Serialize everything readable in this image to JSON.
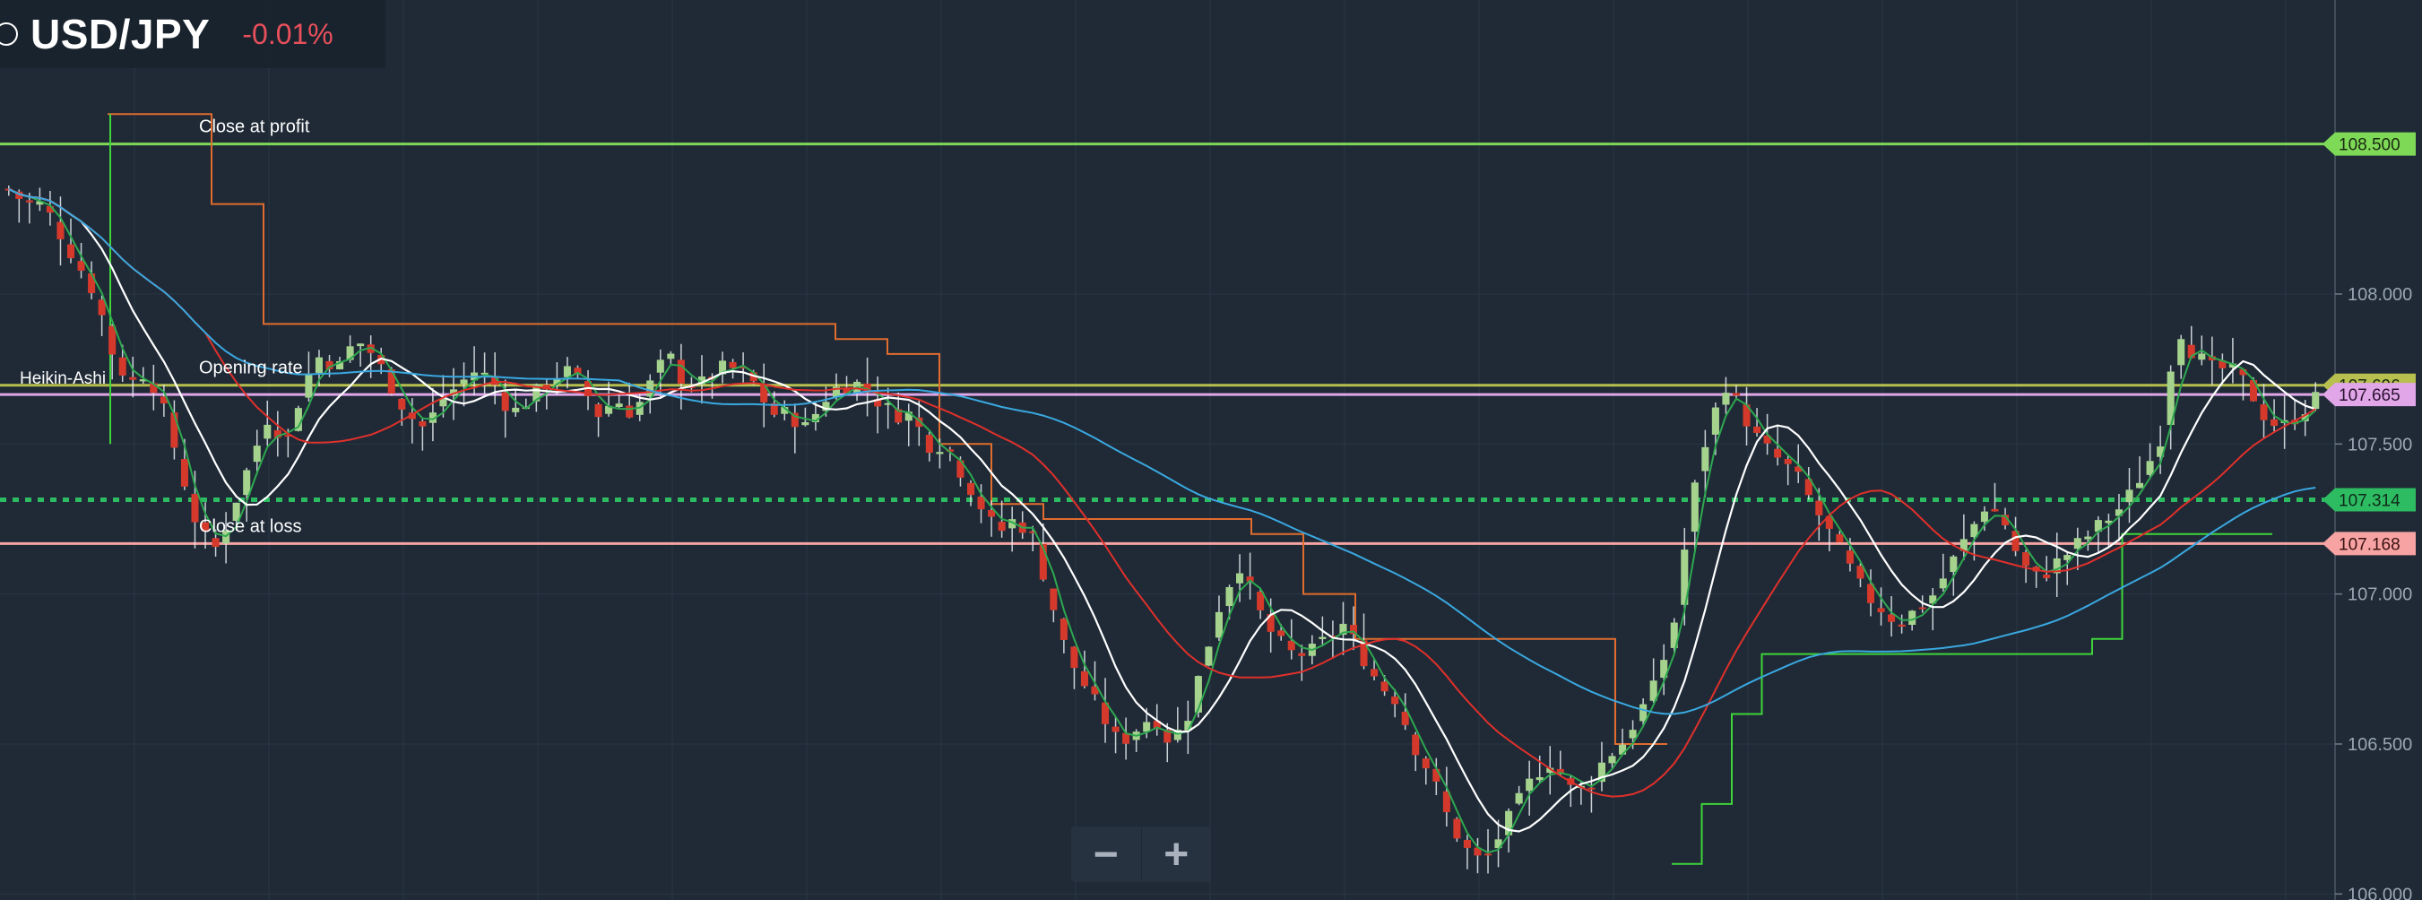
{
  "header": {
    "symbol": "USD/JPY",
    "change": "-0.01%",
    "icon": "circle-icon"
  },
  "zoom": {
    "minus_label": "−",
    "plus_label": "+"
  },
  "colors": {
    "background": "#1f2a36",
    "grid": "#2a3644",
    "candle_up": "#a5d38d",
    "candle_down": "#d4392b",
    "wick": "#e8edf2",
    "ma_fast": "#2ea84f",
    "ma_mid": "#ffffff",
    "ma_slow": "#e0302b",
    "ma_long": "#3aa8e0",
    "take_profit": "#7ed957",
    "stop_loss": "#f7a3a3",
    "opening_rate": "#b7c04f",
    "current_rate": "#e0a6e8",
    "dotted_level": "#2ebc62",
    "step_orange": "#e06c2e",
    "step_green": "#3fd43a"
  },
  "chart_data": {
    "type": "candlestick",
    "ylim": [
      105.98,
      108.98
    ],
    "y_ticks": [
      {
        "value": 108.0,
        "label": "108.000"
      },
      {
        "value": 107.5,
        "label": "107.500"
      },
      {
        "value": 107.0,
        "label": "107.000"
      },
      {
        "value": 106.5,
        "label": "106.500"
      },
      {
        "value": 106.0,
        "label": "106.000"
      }
    ],
    "legend_label": "Heikin-Ashi",
    "levels": [
      {
        "name": "close-at-profit",
        "value": 108.5,
        "label": "Close at profit",
        "tag": "108.500",
        "color": "#7ed957",
        "tag_text_color": "#1b2a12",
        "style": "solid"
      },
      {
        "name": "opening-rate",
        "value": 107.696,
        "label": "Opening rate",
        "tag": "107.696",
        "color": "#b7c04f",
        "tag_text_color": "#1b2a12",
        "style": "solid"
      },
      {
        "name": "current-rate",
        "value": 107.665,
        "label": "",
        "tag": "107.665",
        "color": "#e0a6e8",
        "tag_text_color": "#2a1230",
        "style": "solid"
      },
      {
        "name": "dotted-level",
        "value": 107.314,
        "label": "",
        "tag": "107.314",
        "color": "#2ebc62",
        "tag_text_color": "#0f2a1a",
        "style": "dotted"
      },
      {
        "name": "close-at-loss",
        "value": 107.168,
        "label": "Close at loss",
        "tag": "107.168",
        "color": "#f7a3a3",
        "tag_text_color": "#3a1212",
        "style": "solid"
      }
    ],
    "anchors": {
      "price": [
        108.35,
        108.3,
        108.3,
        108.2,
        108.1,
        108.0,
        107.8,
        107.7,
        107.75,
        107.6,
        107.4,
        107.2,
        107.15,
        107.3,
        107.45,
        107.6,
        107.5,
        107.7,
        107.8,
        107.75,
        107.85,
        107.8,
        107.7,
        107.6,
        107.55,
        107.65,
        107.7,
        107.75,
        107.7,
        107.6,
        107.65,
        107.7,
        107.75,
        107.7,
        107.6,
        107.65,
        107.6,
        107.7,
        107.8,
        107.7,
        107.7,
        107.75,
        107.75,
        107.7,
        107.6,
        107.6,
        107.55,
        107.65,
        107.7,
        107.7,
        107.65,
        107.6,
        107.6,
        107.5,
        107.5,
        107.4,
        107.3,
        107.2,
        107.25,
        107.2,
        107.0,
        106.8,
        106.7,
        106.6,
        106.5,
        106.55,
        106.6,
        106.5,
        106.6,
        106.8,
        107.0,
        107.1,
        106.95,
        106.85,
        106.8,
        106.8,
        106.85,
        106.9,
        106.8,
        106.7,
        106.65,
        106.5,
        106.4,
        106.25,
        106.15,
        106.1,
        106.2,
        106.3,
        106.4,
        106.45,
        106.35,
        106.35,
        106.45,
        106.5,
        106.6,
        106.7,
        106.9,
        107.3,
        107.55,
        107.7,
        107.6,
        107.5,
        107.45,
        107.4,
        107.3,
        107.2,
        107.1,
        107.0,
        106.95,
        106.9,
        106.95,
        107.0,
        107.1,
        107.2,
        107.3,
        107.25,
        107.1,
        107.05,
        107.1,
        107.15,
        107.2,
        107.25,
        107.3,
        107.4,
        107.5,
        107.9,
        107.8,
        107.75,
        107.75,
        107.7,
        107.6,
        107.55,
        107.6,
        107.65
      ]
    },
    "series": [
      {
        "name": "",
        "color": "#2ea84f",
        "period": 3
      },
      {
        "name": "",
        "color": "#ffffff",
        "period": 8
      },
      {
        "name": "",
        "color": "#e0302b",
        "period": 20
      },
      {
        "name": "",
        "color": "#3aa8e0",
        "period": 60
      }
    ],
    "step_lines": [
      {
        "name": "orange-step",
        "color": "#e06c2e",
        "values": [
          108.6,
          108.6,
          108.3,
          107.9,
          107.9,
          107.9,
          107.9,
          107.9,
          107.9,
          107.9,
          107.9,
          107.9,
          107.9,
          107.9,
          107.85,
          107.8,
          107.5,
          107.3,
          107.25,
          107.25,
          107.25,
          107.25,
          107.2,
          107.0,
          106.85,
          106.85,
          106.85,
          106.85,
          106.85,
          106.5
        ]
      },
      {
        "name": "green-step",
        "color": "#3fd43a",
        "values": [
          106.1,
          106.3,
          106.6,
          106.8,
          106.8,
          106.8,
          106.8,
          106.8,
          106.8,
          106.8,
          106.8,
          106.8,
          106.8,
          106.8,
          106.85,
          107.2,
          107.2,
          107.2,
          107.2,
          107.2
        ]
      }
    ]
  }
}
